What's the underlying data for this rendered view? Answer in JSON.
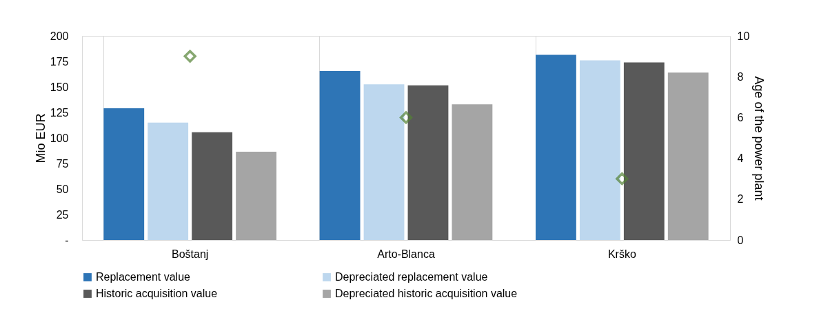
{
  "chart_data": {
    "type": "bar",
    "categories": [
      "Boštanj",
      "Arto-Blanca",
      "Krško"
    ],
    "series": [
      {
        "name": "Replacement value",
        "color": "#2e75b6",
        "values": [
          129,
          165.5,
          181.5
        ]
      },
      {
        "name": "Depreciated replacement value",
        "color": "#bdd7ee",
        "values": [
          115,
          152.5,
          176
        ]
      },
      {
        "name": "Historic acquisition value",
        "color": "#595959",
        "values": [
          105.5,
          151.5,
          174
        ]
      },
      {
        "name": "Depreciated historic acquisition value",
        "color": "#a5a5a5",
        "values": [
          86.5,
          133,
          164
        ]
      },
      {
        "type": "scatter",
        "axis": "y2",
        "color": "#548235",
        "marker": "diamond",
        "values": [
          9,
          6,
          3
        ]
      }
    ],
    "ylabel": "Mio EUR",
    "y2label": "Age of the power plant",
    "ylim": [
      0,
      200
    ],
    "yticks": [
      {
        "value": 0,
        "label": "-"
      },
      25,
      50,
      75,
      100,
      125,
      150,
      175,
      200
    ],
    "y2lim": [
      0,
      10
    ],
    "y2ticks": [
      0,
      2,
      4,
      6,
      8,
      10
    ],
    "grid": "x",
    "legend": "bottom"
  }
}
